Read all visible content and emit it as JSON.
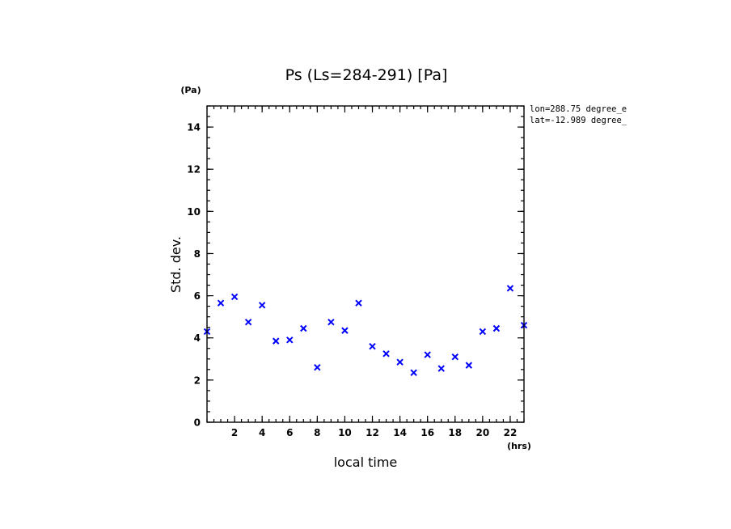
{
  "chart_data": {
    "type": "scatter",
    "title": "Ps (Ls=284-291) [Pa]",
    "xlabel": "local time",
    "ylabel": "Std. dev.",
    "x_unit": "(hrs)",
    "y_unit": "(Pa)",
    "xlim": [
      0,
      23
    ],
    "ylim": [
      0,
      15
    ],
    "x_ticks": [
      2,
      4,
      6,
      8,
      10,
      12,
      14,
      16,
      18,
      20,
      22
    ],
    "y_ticks": [
      0,
      2,
      4,
      6,
      8,
      10,
      12,
      14
    ],
    "x_minor_step": 0.5,
    "y_minor_step": 0.5,
    "marker": "x",
    "color": "#0000ff",
    "info_lines": [
      "lon=288.75 degree_e",
      "lat=-12.989 degree_"
    ],
    "series": [
      {
        "x": [
          0,
          1,
          2,
          3,
          4,
          5,
          6,
          7,
          8,
          9,
          10,
          11,
          12,
          13,
          14,
          15,
          16,
          17,
          18,
          19,
          20,
          21,
          22,
          23
        ],
        "y": [
          4.3,
          5.65,
          5.95,
          4.75,
          5.55,
          3.85,
          3.9,
          4.45,
          2.6,
          4.75,
          4.35,
          5.65,
          3.6,
          3.25,
          2.85,
          2.35,
          3.2,
          2.55,
          3.1,
          2.7,
          4.3,
          4.45,
          6.35,
          4.6
        ]
      }
    ]
  }
}
